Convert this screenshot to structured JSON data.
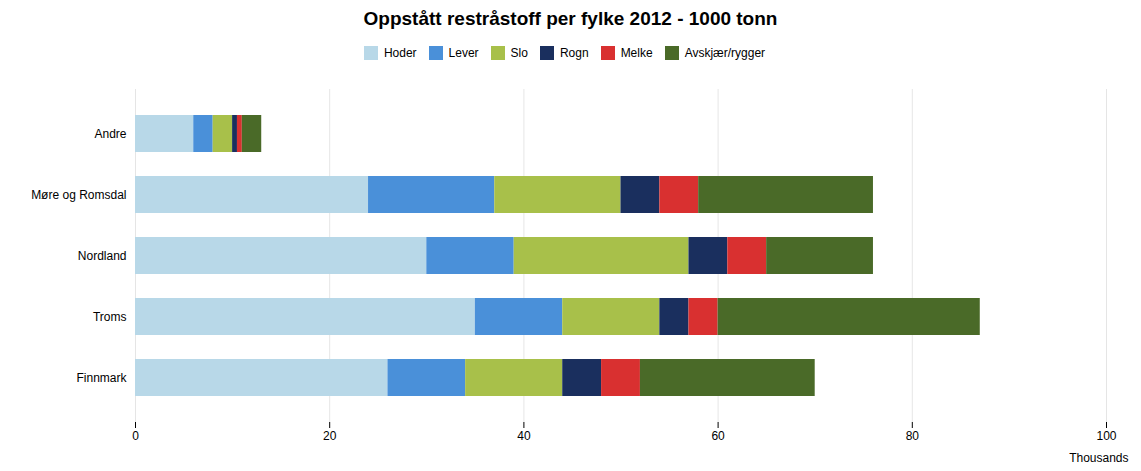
{
  "chart_data": {
    "type": "bar",
    "orientation": "horizontal",
    "stacked": true,
    "title": "Oppstått restråstoff per fylke 2012 - 1000 tonn",
    "categories": [
      "Finnmark",
      "Troms",
      "Nordland",
      "Møre og Romsdal",
      "Andre"
    ],
    "series": [
      {
        "name": "Hoder",
        "color": "#b8d8e8",
        "values": [
          26,
          35,
          30,
          24,
          6
        ]
      },
      {
        "name": "Lever",
        "color": "#4a90d9",
        "values": [
          8,
          9,
          9,
          13,
          2
        ]
      },
      {
        "name": "Slo",
        "color": "#a8c04a",
        "values": [
          10,
          10,
          18,
          13,
          2
        ]
      },
      {
        "name": "Rogn",
        "color": "#1a2f5e",
        "values": [
          4,
          3,
          4,
          4,
          0.5
        ]
      },
      {
        "name": "Melke",
        "color": "#d93030",
        "values": [
          4,
          3,
          4,
          4,
          0.5
        ]
      },
      {
        "name": "Avskjær/rygger",
        "color": "#4a6a28",
        "values": [
          18,
          27,
          11,
          18,
          2
        ]
      }
    ],
    "xlabel": "Thousands",
    "xlim": [
      0,
      100
    ],
    "xticks": [
      0,
      20,
      40,
      60,
      80,
      100
    ],
    "grid": true,
    "legend": "top"
  }
}
